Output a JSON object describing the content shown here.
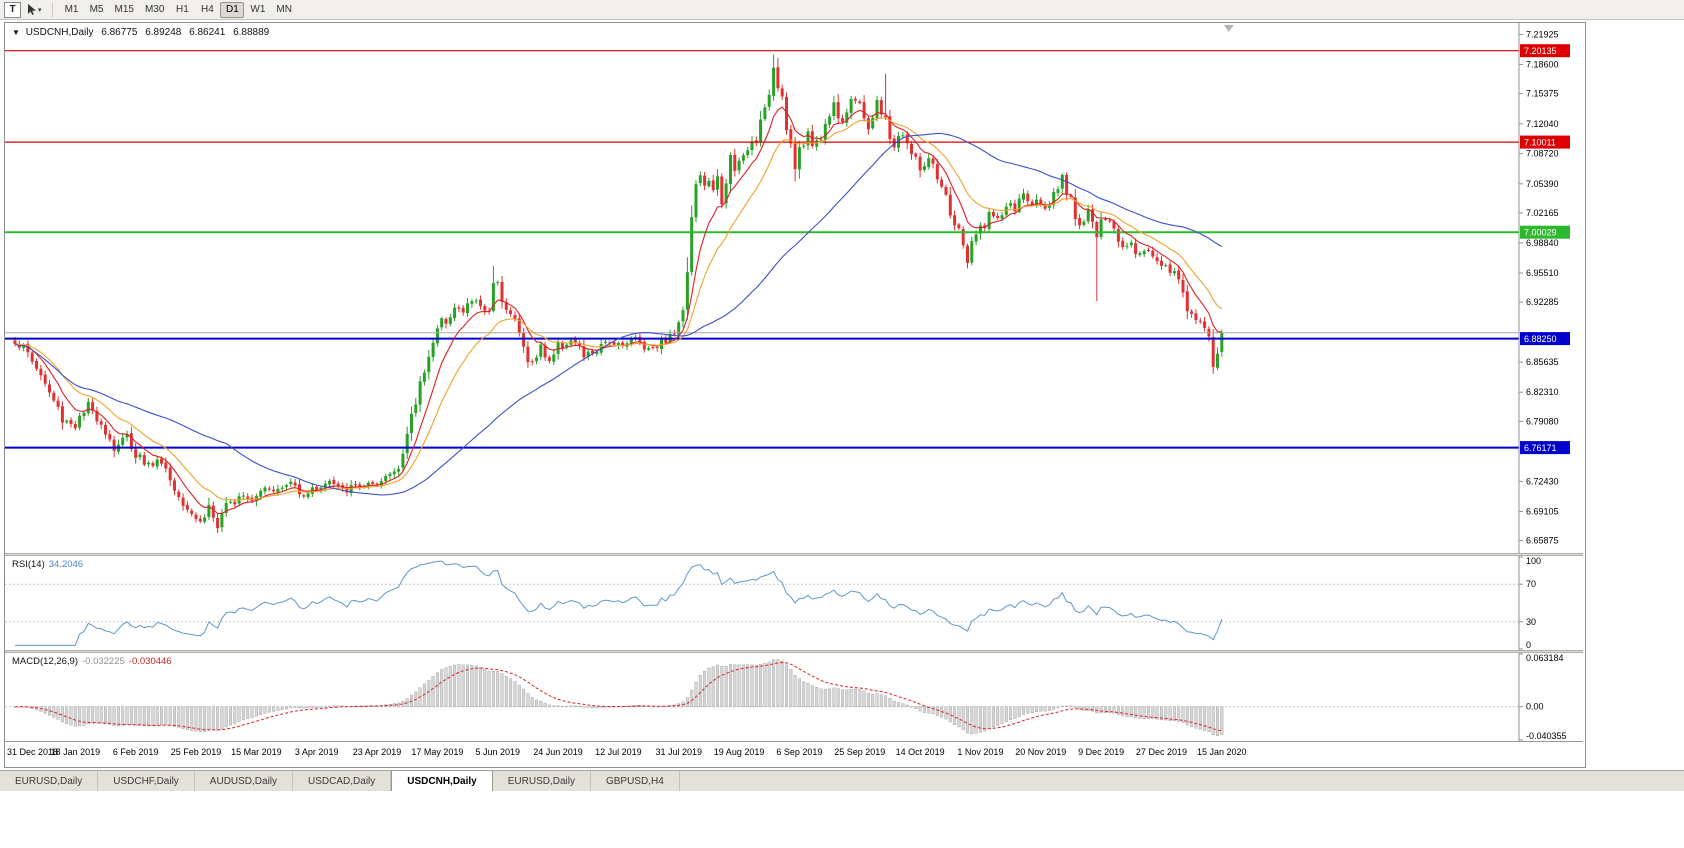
{
  "toolbar": {
    "window_icon": "T",
    "caret_icon": "▾",
    "timeframes": [
      {
        "label": "M1",
        "active": false
      },
      {
        "label": "M5",
        "active": false
      },
      {
        "label": "M15",
        "active": false
      },
      {
        "label": "M30",
        "active": false
      },
      {
        "label": "H1",
        "active": false
      },
      {
        "label": "H4",
        "active": false
      },
      {
        "label": "D1",
        "active": true
      },
      {
        "label": "W1",
        "active": false
      },
      {
        "label": "MN",
        "active": false
      }
    ]
  },
  "chart": {
    "title": {
      "collapse_icon": "▼",
      "symbol": "USDCNH,Daily",
      "open": "6.86775",
      "high": "6.89248",
      "low": "6.86241",
      "close": "6.88889"
    }
  },
  "tabs": [
    {
      "label": "EURUSD,Daily",
      "active": false
    },
    {
      "label": "USDCHF,Daily",
      "active": false
    },
    {
      "label": "AUDUSD,Daily",
      "active": false
    },
    {
      "label": "USDCAD,Daily",
      "active": false
    },
    {
      "label": "USDCNH,Daily",
      "active": true
    },
    {
      "label": "EURUSD,Daily",
      "active": false
    },
    {
      "label": "GBPUSD,H4",
      "active": false
    }
  ],
  "chart_data": {
    "type": "candlestick",
    "symbol": "USDCNH",
    "timeframe": "Daily",
    "current_bar": {
      "open": 6.86775,
      "high": 6.89248,
      "low": 6.86241,
      "close": 6.88889
    },
    "bars_count": 281,
    "price_range": {
      "top": 7.232,
      "bottom": 6.645
    },
    "colors": {
      "up": "#27a227",
      "down": "#e03232",
      "bg": "#ffffff"
    },
    "horizontal_lines": [
      {
        "price": 7.20135,
        "color": "#dd0000",
        "width": 1.2,
        "badge": "7.20135"
      },
      {
        "price": 7.10011,
        "color": "#dd0000",
        "width": 1.2,
        "badge": "7.10011"
      },
      {
        "price": 7.00029,
        "color": "#2eb82e",
        "width": 2,
        "badge": "7.00029"
      },
      {
        "price": 6.8825,
        "color": "#0000cc",
        "width": 2,
        "badge": "6.88250"
      },
      {
        "price": 6.76171,
        "color": "#0000cc",
        "width": 2,
        "badge": "6.76171"
      }
    ],
    "bid_line": {
      "price": 6.88889,
      "color": "#a8a8a8",
      "width": 1
    },
    "y_ticks": [
      7.21925,
      7.186,
      7.15375,
      7.1204,
      7.0872,
      7.0539,
      7.02165,
      6.9884,
      6.9551,
      6.92285,
      6.85635,
      6.8231,
      6.7908,
      6.7243,
      6.69105,
      6.65875
    ],
    "x_labels": [
      {
        "bar": 0,
        "text": "31 Dec 2018"
      },
      {
        "bar": 14,
        "text": "18 Jan 2019"
      },
      {
        "bar": 28,
        "text": "6 Feb 2019"
      },
      {
        "bar": 42,
        "text": "25 Feb 2019"
      },
      {
        "bar": 56,
        "text": "15 Mar 2019"
      },
      {
        "bar": 70,
        "text": "3 Apr 2019"
      },
      {
        "bar": 84,
        "text": "23 Apr 2019"
      },
      {
        "bar": 98,
        "text": "17 May 2019"
      },
      {
        "bar": 112,
        "text": "5 Jun 2019"
      },
      {
        "bar": 126,
        "text": "24 Jun 2019"
      },
      {
        "bar": 140,
        "text": "12 Jul 2019"
      },
      {
        "bar": 154,
        "text": "31 Jul 2019"
      },
      {
        "bar": 168,
        "text": "19 Aug 2019"
      },
      {
        "bar": 182,
        "text": "6 Sep 2019"
      },
      {
        "bar": 196,
        "text": "25 Sep 2019"
      },
      {
        "bar": 210,
        "text": "14 Oct 2019"
      },
      {
        "bar": 224,
        "text": "1 Nov 2019"
      },
      {
        "bar": 238,
        "text": "20 Nov 2019"
      },
      {
        "bar": 252,
        "text": "9 Dec 2019"
      },
      {
        "bar": 266,
        "text": "27 Dec 2019"
      },
      {
        "bar": 280,
        "text": "15 Jan 2020"
      }
    ],
    "price_anchors": [
      [
        0,
        6.88
      ],
      [
        2,
        6.872
      ],
      [
        5,
        6.851
      ],
      [
        8,
        6.822
      ],
      [
        11,
        6.795
      ],
      [
        14,
        6.786
      ],
      [
        17,
        6.806
      ],
      [
        20,
        6.791
      ],
      [
        23,
        6.762
      ],
      [
        26,
        6.774
      ],
      [
        28,
        6.757
      ],
      [
        31,
        6.742
      ],
      [
        34,
        6.748
      ],
      [
        37,
        6.716
      ],
      [
        40,
        6.698
      ],
      [
        43,
        6.679
      ],
      [
        45,
        6.697
      ],
      [
        47,
        6.673
      ],
      [
        49,
        6.692
      ],
      [
        52,
        6.713
      ],
      [
        55,
        6.706
      ],
      [
        58,
        6.721
      ],
      [
        61,
        6.714
      ],
      [
        64,
        6.723
      ],
      [
        67,
        6.711
      ],
      [
        70,
        6.717
      ],
      [
        73,
        6.724
      ],
      [
        76,
        6.713
      ],
      [
        79,
        6.719
      ],
      [
        82,
        6.721
      ],
      [
        84,
        6.716
      ],
      [
        86,
        6.729
      ],
      [
        88,
        6.737
      ],
      [
        90,
        6.757
      ],
      [
        92,
        6.792
      ],
      [
        94,
        6.833
      ],
      [
        96,
        6.868
      ],
      [
        98,
        6.888
      ],
      [
        100,
        6.907
      ],
      [
        102,
        6.917
      ],
      [
        104,
        6.911
      ],
      [
        106,
        6.926
      ],
      [
        108,
        6.919
      ],
      [
        110,
        6.91
      ],
      [
        111,
        6.951
      ],
      [
        113,
        6.931
      ],
      [
        116,
        6.901
      ],
      [
        118,
        6.872
      ],
      [
        120,
        6.853
      ],
      [
        122,
        6.871
      ],
      [
        124,
        6.859
      ],
      [
        126,
        6.873
      ],
      [
        129,
        6.881
      ],
      [
        132,
        6.863
      ],
      [
        135,
        6.869
      ],
      [
        138,
        6.879
      ],
      [
        141,
        6.877
      ],
      [
        144,
        6.883
      ],
      [
        147,
        6.871
      ],
      [
        150,
        6.879
      ],
      [
        152,
        6.885
      ],
      [
        154,
        6.896
      ],
      [
        155,
        6.921
      ],
      [
        156,
        6.961
      ],
      [
        157,
        7.022
      ],
      [
        158,
        7.051
      ],
      [
        159,
        7.066
      ],
      [
        160,
        7.046
      ],
      [
        161,
        7.061
      ],
      [
        162,
        7.041
      ],
      [
        163,
        7.056
      ],
      [
        164,
        7.036
      ],
      [
        165,
        7.061
      ],
      [
        166,
        7.081
      ],
      [
        167,
        7.063
      ],
      [
        168,
        7.076
      ],
      [
        170,
        7.091
      ],
      [
        172,
        7.106
      ],
      [
        174,
        7.131
      ],
      [
        176,
        7.186
      ],
      [
        178,
        7.151
      ],
      [
        179,
        7.121
      ],
      [
        180,
        7.096
      ],
      [
        181,
        7.071
      ],
      [
        182,
        7.086
      ],
      [
        184,
        7.111
      ],
      [
        186,
        7.096
      ],
      [
        188,
        7.121
      ],
      [
        190,
        7.141
      ],
      [
        192,
        7.126
      ],
      [
        194,
        7.151
      ],
      [
        196,
        7.136
      ],
      [
        198,
        7.119
      ],
      [
        200,
        7.141
      ],
      [
        202,
        7.121
      ],
      [
        204,
        7.096
      ],
      [
        206,
        7.111
      ],
      [
        208,
        7.086
      ],
      [
        210,
        7.071
      ],
      [
        212,
        7.079
      ],
      [
        214,
        7.056
      ],
      [
        216,
        7.036
      ],
      [
        218,
        7.011
      ],
      [
        220,
        6.986
      ],
      [
        221,
        6.969
      ],
      [
        223,
        6.996
      ],
      [
        226,
        7.021
      ],
      [
        228,
        7.011
      ],
      [
        230,
        7.031
      ],
      [
        232,
        7.026
      ],
      [
        234,
        7.041
      ],
      [
        236,
        7.031
      ],
      [
        238,
        7.036
      ],
      [
        240,
        7.026
      ],
      [
        243,
        7.056
      ],
      [
        245,
        7.031
      ],
      [
        247,
        7.011
      ],
      [
        249,
        7.026
      ],
      [
        251,
        6.996
      ],
      [
        253,
        7.016
      ],
      [
        255,
        7.001
      ],
      [
        257,
        6.986
      ],
      [
        259,
        6.993
      ],
      [
        261,
        6.976
      ],
      [
        263,
        6.981
      ],
      [
        266,
        6.966
      ],
      [
        268,
        6.959
      ],
      [
        270,
        6.946
      ],
      [
        272,
        6.921
      ],
      [
        274,
        6.901
      ],
      [
        276,
        6.896
      ],
      [
        277,
        6.876
      ],
      [
        278,
        6.852
      ],
      [
        279,
        6.866
      ],
      [
        280,
        6.88889
      ]
    ],
    "special_wicks": [
      {
        "bar": 111,
        "high": 6.963
      },
      {
        "bar": 176,
        "high": 7.197
      },
      {
        "bar": 202,
        "high": 7.176
      },
      {
        "bar": 251,
        "low": 6.924
      },
      {
        "bar": 278,
        "low": 6.8435
      }
    ],
    "moving_averages": [
      {
        "name": "ma-fast-line",
        "period": 8,
        "type": "ema",
        "color": "#e02020"
      },
      {
        "name": "ma-mid-line",
        "period": 17,
        "type": "ema",
        "color": "#efa32a"
      },
      {
        "name": "ma-slow-line",
        "period": 50,
        "type": "sma",
        "color": "#3c50c8"
      }
    ],
    "indicators": {
      "rsi": {
        "label": "RSI(14)",
        "value": "34.2046",
        "period": 14,
        "color": "#5e97d0",
        "levels": [
          70,
          30
        ],
        "scale": [
          0,
          100
        ],
        "axis_labels": [
          "100",
          "70",
          "30",
          "0"
        ]
      },
      "macd": {
        "label": "MACD(12,26,9)",
        "value_main": "-0.032225",
        "value_signal": "-0.030446",
        "fast": 12,
        "slow": 26,
        "signal": 9,
        "hist_fill": "#d6d6d6",
        "hist_stroke": "#9e9e9e",
        "signal_color": "#dd2222",
        "scale": [
          -0.040355,
          0.063184
        ],
        "axis_labels": [
          "0.063184",
          "0.00",
          "-0.040355"
        ]
      }
    }
  }
}
